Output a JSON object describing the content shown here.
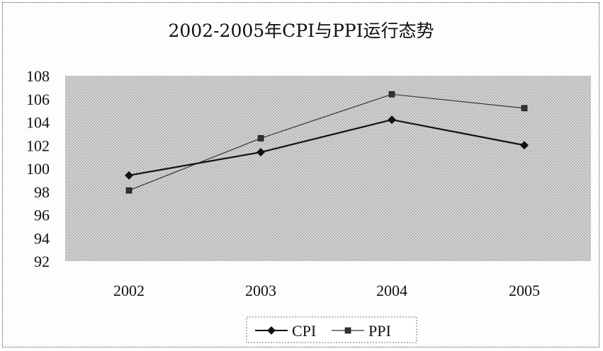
{
  "chart_data": {
    "type": "line",
    "title": "2002-2005年CPI与PPI运行态势",
    "xlabel": "",
    "ylabel": "",
    "categories": [
      "2002",
      "2003",
      "2004",
      "2005"
    ],
    "ylim": [
      92,
      108
    ],
    "yticks": [
      108,
      106,
      104,
      102,
      100,
      98,
      96,
      94,
      92
    ],
    "grid": false,
    "legend_position": "bottom",
    "series": [
      {
        "name": "CPI",
        "values": [
          99.4,
          101.4,
          104.2,
          102.0
        ],
        "marker": "diamond",
        "color": "#111111"
      },
      {
        "name": "PPI",
        "values": [
          98.1,
          102.6,
          106.4,
          105.2
        ],
        "marker": "square",
        "color": "#333333"
      }
    ],
    "plot_background": "#c9c9c9"
  }
}
